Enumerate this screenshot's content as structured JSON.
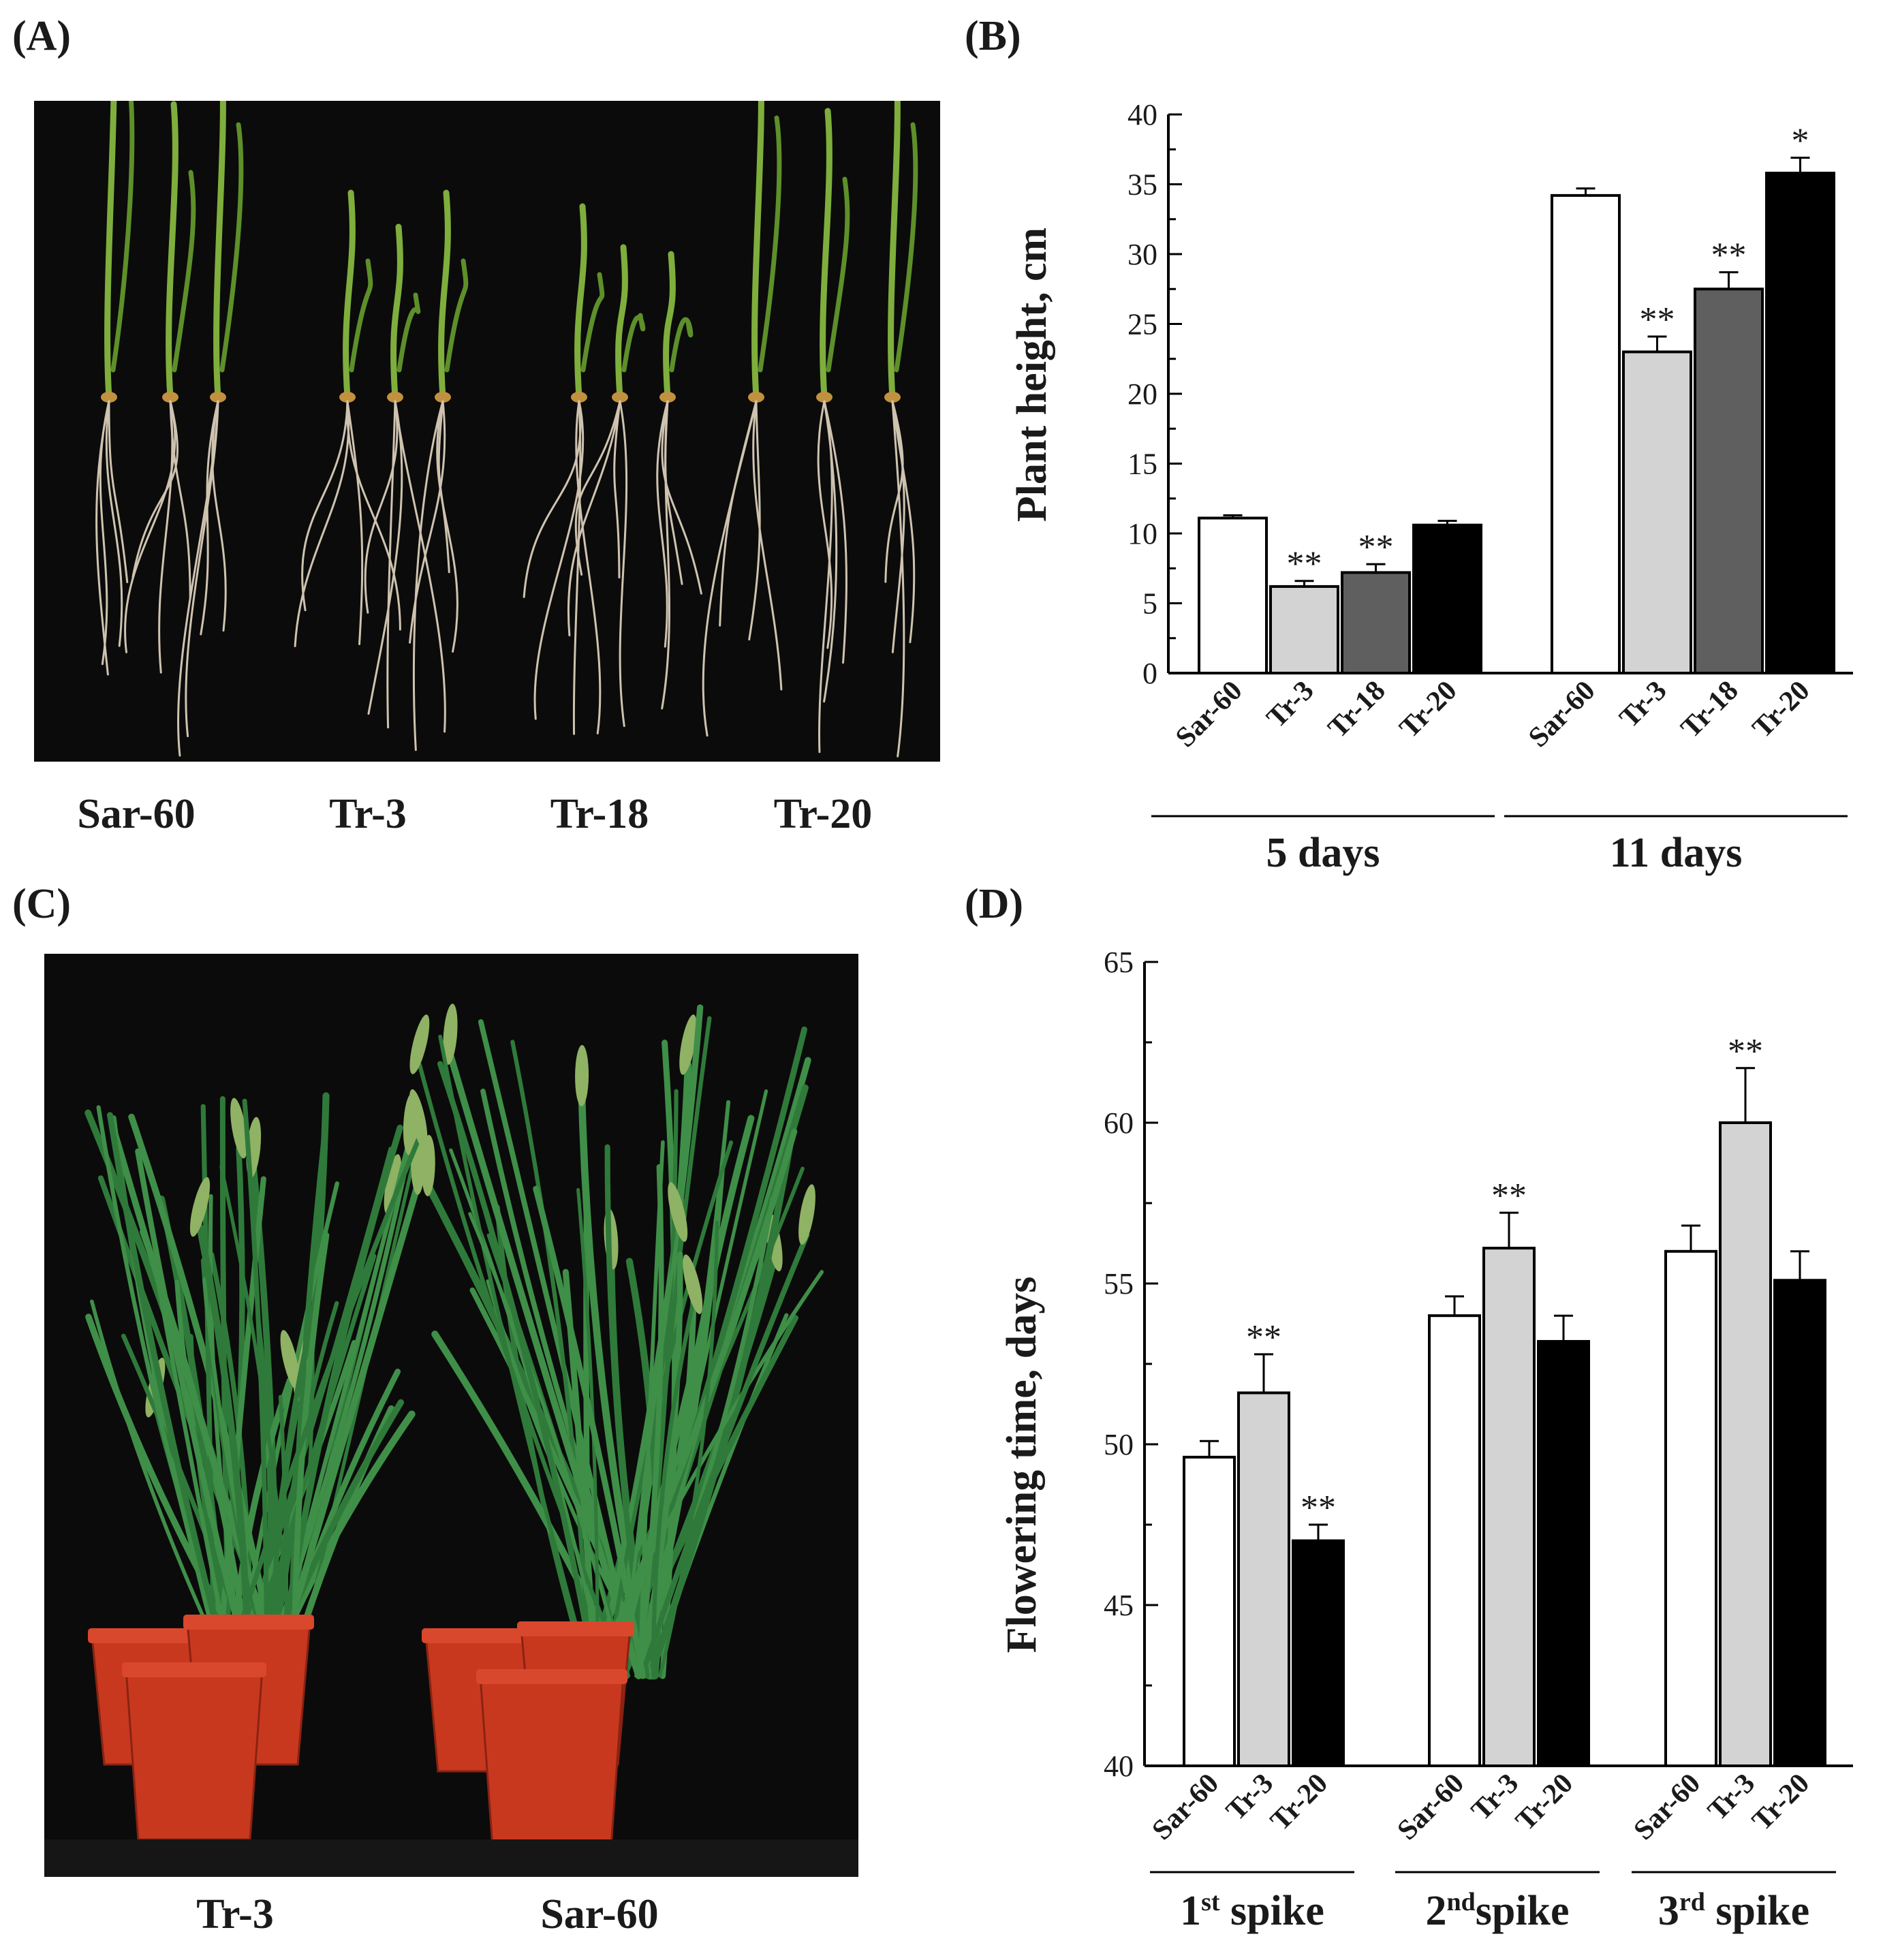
{
  "panels": {
    "a": {
      "label": "(A)",
      "captions": [
        "Sar-60",
        "Tr-3",
        "Tr-18",
        "Tr-20"
      ]
    },
    "b": {
      "label": "(B)"
    },
    "c": {
      "label": "(C)",
      "captions": [
        "Tr-3",
        "Sar-60"
      ]
    },
    "d": {
      "label": "(D)"
    }
  },
  "colors": {
    "Sar-60": "#ffffff",
    "Tr-3": "#d3d3d3",
    "Tr-18": "#5f5f5f",
    "Tr-20": "#000000",
    "photo_background": "#0b0b0b",
    "leaf_green": "#2f7a3a",
    "pot_red": "#c8381f"
  },
  "chart_data": [
    {
      "type": "bar",
      "panel": "(B)",
      "ylabel": "Plant height, cm",
      "ylim": [
        0,
        40
      ],
      "yticks": [
        0,
        5,
        10,
        15,
        20,
        25,
        30,
        35,
        40
      ],
      "groups": [
        "5 days",
        "11 days"
      ],
      "categories": [
        "Sar-60",
        "Tr-3",
        "Tr-18",
        "Tr-20"
      ],
      "series": [
        {
          "group": "5 days",
          "values": [
            11.1,
            6.2,
            7.2,
            10.6
          ],
          "errors": [
            0.2,
            0.4,
            0.6,
            0.3
          ],
          "significance": [
            "",
            "**",
            "**",
            ""
          ]
        },
        {
          "group": "11 days",
          "values": [
            34.2,
            23.0,
            27.5,
            35.8
          ],
          "errors": [
            0.5,
            1.1,
            1.2,
            1.1
          ],
          "significance": [
            "",
            "**",
            "**",
            "*"
          ]
        }
      ],
      "grid": false
    },
    {
      "type": "bar",
      "panel": "(D)",
      "ylabel": "Flowering time, days",
      "ylim": [
        40,
        65
      ],
      "yticks": [
        40,
        45,
        50,
        55,
        60,
        65
      ],
      "groups": [
        {
          "num": "1",
          "sup": "st",
          "word": " spike"
        },
        {
          "num": "2",
          "sup": "nd",
          "word": "spike"
        },
        {
          "num": "3",
          "sup": "rd",
          "word": " spike"
        }
      ],
      "categories": [
        "Sar-60",
        "Tr-3",
        "Tr-20"
      ],
      "series": [
        {
          "group": "1st spike",
          "values": [
            49.6,
            51.6,
            47.0
          ],
          "errors": [
            0.5,
            1.2,
            0.5
          ],
          "significance": [
            "",
            "**",
            "**"
          ]
        },
        {
          "group": "2nd spike",
          "values": [
            54.0,
            56.1,
            53.2
          ],
          "errors": [
            0.6,
            1.1,
            0.8
          ],
          "significance": [
            "",
            "**",
            ""
          ]
        },
        {
          "group": "3rd spike",
          "values": [
            56.0,
            60.0,
            55.1
          ],
          "errors": [
            0.8,
            1.7,
            0.9
          ],
          "significance": [
            "",
            "**",
            ""
          ]
        }
      ],
      "grid": false
    }
  ]
}
